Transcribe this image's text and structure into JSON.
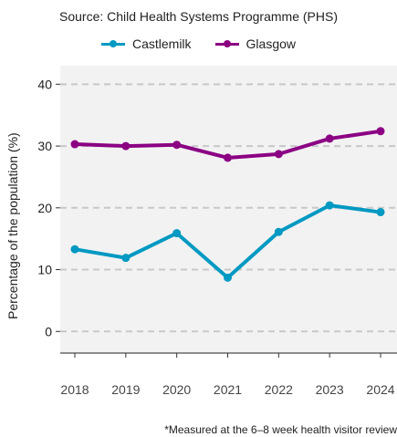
{
  "chart_data": {
    "type": "line",
    "subtitle": "Source: Child Health Systems Programme (PHS)",
    "ylabel": "Percentage of the population (%)",
    "xlabel": "",
    "caption": "*Measured at the 6–8 week health visitor review",
    "x": [
      "2018",
      "2019",
      "2020",
      "2021",
      "2022",
      "2023",
      "2024"
    ],
    "series": [
      {
        "name": "Castlemilk",
        "color": "#0099C2",
        "values": [
          13.3,
          11.9,
          15.9,
          8.7,
          16.1,
          20.4,
          19.3
        ]
      },
      {
        "name": "Glasgow",
        "color": "#8B0083",
        "values": [
          30.3,
          30.0,
          30.2,
          28.1,
          28.7,
          31.2,
          32.4
        ]
      }
    ],
    "ylim": [
      -3.5,
      43
    ],
    "yticks": [
      0,
      10,
      20,
      30,
      40
    ],
    "grid": true,
    "legend": "top",
    "panel_color": "#F2F2F2",
    "grid_color": "#C8C8C8"
  }
}
